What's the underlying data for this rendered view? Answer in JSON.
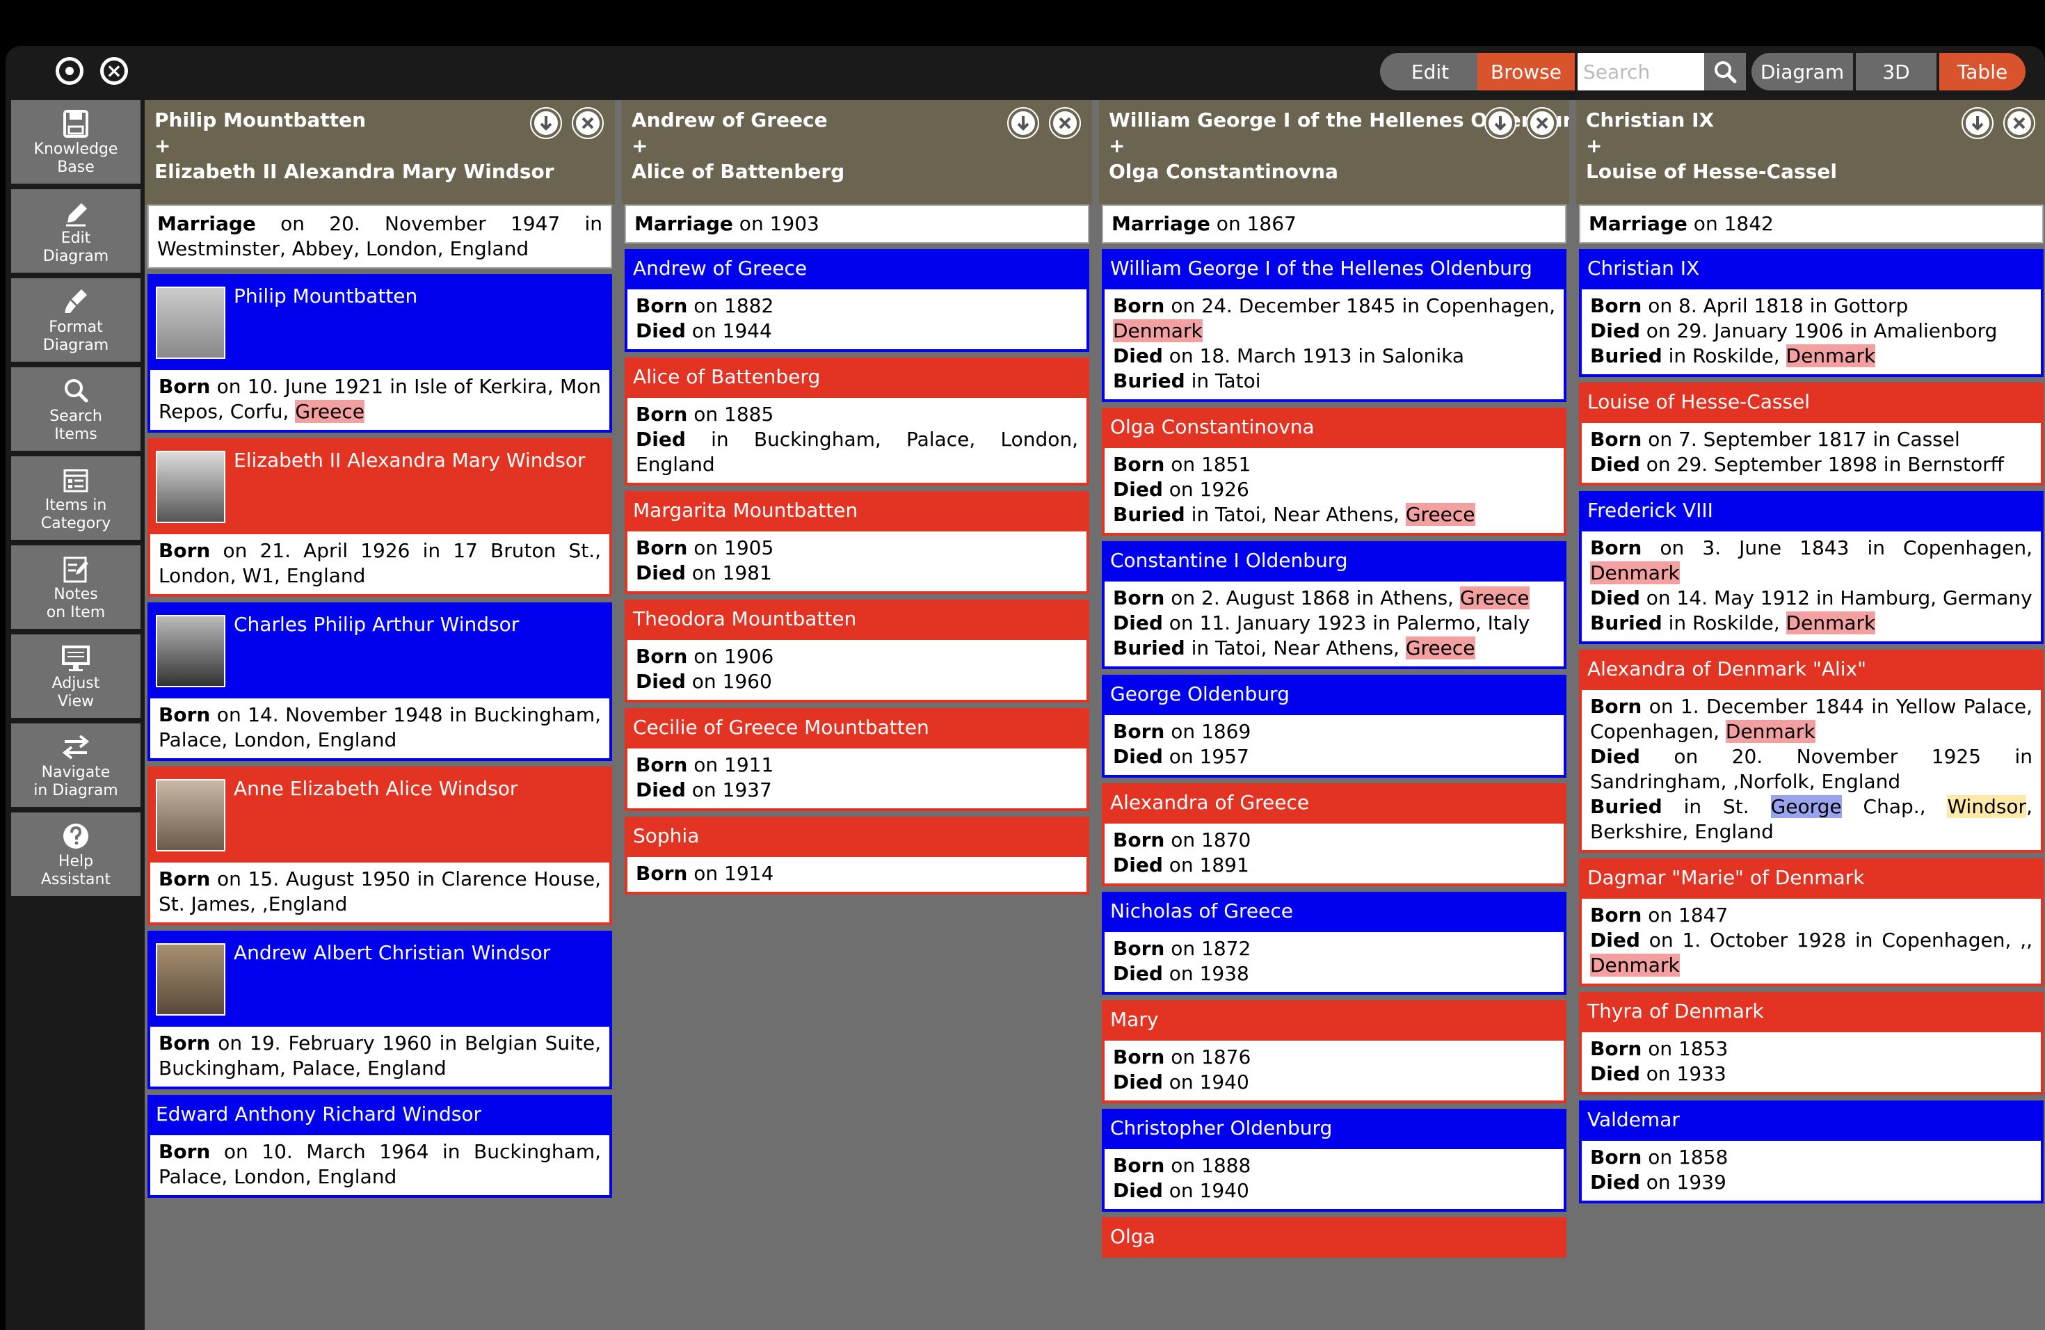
{
  "toolbar": {
    "edit": "Edit",
    "browse": "Browse",
    "search_placeholder": "Search",
    "diagram": "Diagram",
    "three_d": "3D",
    "table": "Table"
  },
  "sidebar": {
    "items": [
      {
        "label1": "Knowledge",
        "label2": "Base",
        "icon": "save-icon"
      },
      {
        "label1": "Edit",
        "label2": "Diagram",
        "icon": "pencil-icon"
      },
      {
        "label1": "Format",
        "label2": "Diagram",
        "icon": "brush-icon"
      },
      {
        "label1": "Search",
        "label2": "Items",
        "icon": "search-icon"
      },
      {
        "label1": "Items in",
        "label2": "Category",
        "icon": "list-icon"
      },
      {
        "label1": "Notes",
        "label2": "on Item",
        "icon": "notes-icon"
      },
      {
        "label1": "Adjust",
        "label2": "View",
        "icon": "monitor-icon"
      },
      {
        "label1": "Navigate",
        "label2": "in Diagram",
        "icon": "swap-icon"
      },
      {
        "label1": "Help",
        "label2": "Assistant",
        "icon": "help-icon"
      }
    ]
  },
  "columns": [
    {
      "spouse1": "Philip Mountbatten",
      "plus": "+",
      "spouse2": "Elizabeth II Alexandra Mary Windsor",
      "marriage_label": "Marriage",
      "marriage_text": " on 20. November 1947 in Westminster, Abbey, London, England"
    },
    {
      "spouse1": "Andrew of Greece",
      "plus": "+",
      "spouse2": "Alice of Battenberg",
      "marriage_label": "Marriage",
      "marriage_text": " on 1903"
    },
    {
      "spouse1": "William George I of the Hellenes Oldenburg",
      "plus": "+",
      "spouse2": "Olga Constantinovna",
      "marriage_label": "Marriage",
      "marriage_text": " on 1867"
    },
    {
      "spouse1": "Christian IX",
      "plus": "+",
      "spouse2": "Louise of Hesse-Cassel",
      "marriage_label": "Marriage",
      "marriage_text": " on 1842"
    }
  ],
  "labels": {
    "born": "Born",
    "died": "Died",
    "buried": "Buried"
  },
  "col1": [
    {
      "name": "Philip Mountbatten",
      "born": " on 10. June 1921 in Isle of Kerkira, Mon Repos, Corfu, ",
      "born_hl": "Greece"
    },
    {
      "name": "Elizabeth II Alexandra Mary Windsor",
      "born": " on 21. April 1926 in 17 Bruton St., London, W1, England"
    },
    {
      "name": "Charles Philip Arthur Windsor",
      "born": " on 14. November 1948 in Buckingham, Palace, London, England"
    },
    {
      "name": "Anne Elizabeth Alice Windsor",
      "born": " on 15. August 1950 in Clarence House, St. James, ,England"
    },
    {
      "name": "Andrew Albert Christian Windsor",
      "born": " on 19. February 1960 in Belgian Suite, Buckingham, Palace, England"
    },
    {
      "name": "Edward Anthony Richard Windsor",
      "born": " on 10. March 1964 in Buckingham, Palace, London, England"
    }
  ],
  "col2": [
    {
      "name": "Andrew of Greece",
      "born": " on 1882",
      "died": " on 1944"
    },
    {
      "name": "Alice of Battenberg",
      "born": " on 1885",
      "died": " in Buckingham, Palace, London, England"
    },
    {
      "name": "Margarita Mountbatten",
      "born": " on 1905",
      "died": " on 1981"
    },
    {
      "name": "Theodora Mountbatten",
      "born": " on 1906",
      "died": " on 1960"
    },
    {
      "name": "Cecilie of Greece Mountbatten",
      "born": " on 1911",
      "died": " on 1937"
    },
    {
      "name": "Sophia",
      "born": " on 1914"
    }
  ],
  "col3": [
    {
      "name": "William George I of the Hellenes Oldenburg",
      "born": " on 24. December 1845 in Copenhagen, ",
      "born_hl": "Denmark",
      "died": " on 18. March 1913 in Salonika",
      "buried": " in Tatoi"
    },
    {
      "name": "Olga Constantinovna",
      "born": " on 1851",
      "died": " on 1926",
      "buried": " in Tatoi, Near Athens, ",
      "buried_hl": "Greece"
    },
    {
      "name": "Constantine I Oldenburg",
      "born": " on 2. August 1868 in Athens, ",
      "born_hl": "Greece",
      "died": " on 11. January 1923 in Palermo, Italy",
      "buried": " in Tatoi, Near Athens, ",
      "buried_hl": "Greece"
    },
    {
      "name": "George Oldenburg",
      "born": " on 1869",
      "died": " on 1957"
    },
    {
      "name": "Alexandra of Greece",
      "born": " on 1870",
      "died": " on 1891"
    },
    {
      "name": "Nicholas of Greece",
      "born": " on 1872",
      "died": " on 1938"
    },
    {
      "name": "Mary",
      "born": " on 1876",
      "died": " on 1940"
    },
    {
      "name": "Christopher Oldenburg",
      "born": " on 1888",
      "died": " on 1940"
    },
    {
      "name": "Olga"
    }
  ],
  "col4": [
    {
      "name": "Christian IX",
      "born": " on 8. April 1818 in Gottorp",
      "died": " on 29. January 1906 in Amalienborg",
      "buried": " in Roskilde, ",
      "buried_hl": "Denmark"
    },
    {
      "name": "Louise of Hesse-Cassel",
      "born": " on 7. September 1817 in Cassel",
      "died": " on 29. September 1898 in Bernstorff"
    },
    {
      "name": "Frederick VIII",
      "born": " on 3. June 1843 in Copenhagen, ",
      "born_hl": "Denmark",
      "died": " on 14. May 1912 in Hamburg, Germany",
      "buried": " in Roskilde, ",
      "buried_hl": "Denmark"
    },
    {
      "name": "Alexandra of Denmark \"Alix\"",
      "born": " on 1. December 1844 in Yellow Palace, Copenhagen, ",
      "born_hl": "Denmark",
      "died": " on 20. November 1925 in Sandringham, ,Norfolk, England",
      "buried_a": " in St. ",
      "buried_hl1": "George",
      "buried_b": " Chap., ",
      "buried_hl2": "Windsor",
      "buried_c": ", Berkshire, England"
    },
    {
      "name": "Dagmar \"Marie\" of Denmark",
      "born": " on 1847",
      "died": " on 1. October 1928 in Copenhagen, ,,",
      "died_hl": "Denmark"
    },
    {
      "name": "Thyra of Denmark",
      "born": " on 1853",
      "died": " on 1933"
    },
    {
      "name": "Valdemar",
      "born": " on 1858",
      "died": " on 1939"
    }
  ],
  "colors": {
    "male": "#0000ee",
    "female": "#e33322",
    "header": "#6b6450",
    "accent": "#d9532c"
  }
}
